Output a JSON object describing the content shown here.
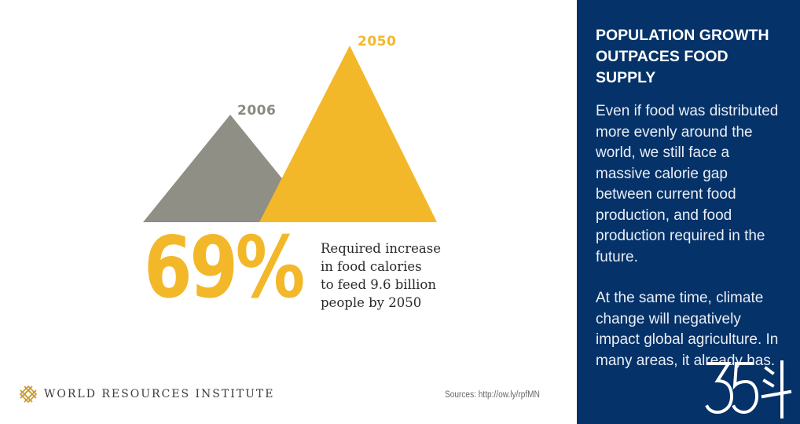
{
  "infographic": {
    "label_2006": "2006",
    "label_2050": "2050",
    "big_stat": "69%",
    "caption_lines": [
      "Required increase",
      "in food calories",
      "to feed 9.6 billion",
      "people by 2050"
    ],
    "org_name": "WORLD RESOURCES INSTITUTE",
    "sources": "Sources: http://ow.ly/rpfMN",
    "colors": {
      "gray": "#8f8f86",
      "gold": "#f3b829"
    }
  },
  "sidebar": {
    "heading": "POPULATION GROWTH OUTPACES FOOD SUPPLY",
    "paragraph_1": "Even if food was distributed more evenly around the world, we still face a massive calorie gap between current food production, and food production required in the future.",
    "paragraph_2": "At the same time, climate change will negatively impact global agriculture. In many areas, it already has.",
    "background": "#053268"
  },
  "watermark": {
    "text": "35斗",
    "icon": "site-watermark-icon"
  }
}
